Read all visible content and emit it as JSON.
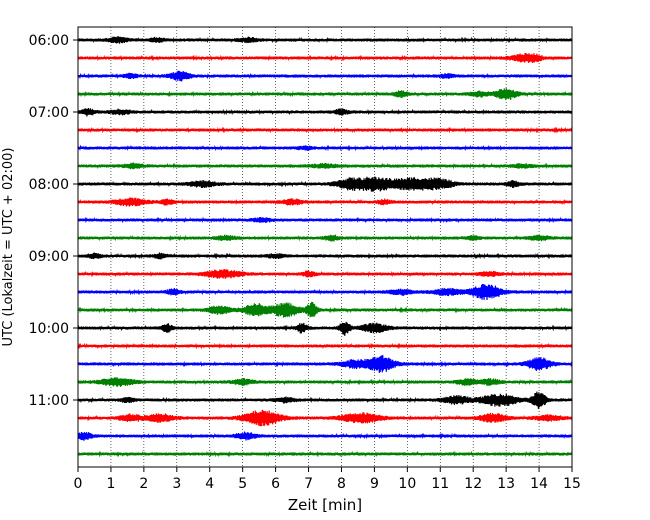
{
  "chart_data": {
    "type": "line",
    "title": "",
    "xlabel": "Zeit  [min]",
    "ylabel": "UTC (Lokalzeit = UTC + 02:00)",
    "xlim": [
      0,
      15
    ],
    "x_ticks": [
      "0",
      "1",
      "2",
      "3",
      "4",
      "5",
      "6",
      "7",
      "8",
      "9",
      "10",
      "11",
      "12",
      "13",
      "14",
      "15"
    ],
    "y_ticks": [
      "06:00",
      "07:00",
      "08:00",
      "09:00",
      "10:00",
      "11:00"
    ],
    "grid": "vertical dotted",
    "color_cycle": [
      "#000000",
      "#ff0000",
      "#0000ff",
      "#008000"
    ],
    "row_minutes": 15,
    "rows": [
      {
        "time": "06:00",
        "bursts": [
          {
            "t": 1.2,
            "a": 2.5,
            "w": 0.3
          },
          {
            "t": 2.4,
            "a": 2,
            "w": 0.2
          },
          {
            "t": 5.2,
            "a": 1.8,
            "w": 0.3
          }
        ]
      },
      {
        "time": "06:15",
        "bursts": [
          {
            "t": 13.5,
            "a": 3.5,
            "w": 0.35
          },
          {
            "t": 13.9,
            "a": 2.5,
            "w": 0.2
          }
        ]
      },
      {
        "time": "06:30",
        "bursts": [
          {
            "t": 1.6,
            "a": 1.8,
            "w": 0.2
          },
          {
            "t": 3.1,
            "a": 4,
            "w": 0.3
          },
          {
            "t": 11.2,
            "a": 1.6,
            "w": 0.2
          }
        ]
      },
      {
        "time": "06:45",
        "bursts": [
          {
            "t": 9.8,
            "a": 2.5,
            "w": 0.2
          },
          {
            "t": 12.2,
            "a": 2.2,
            "w": 0.3
          },
          {
            "t": 13.0,
            "a": 5.5,
            "w": 0.3
          }
        ]
      },
      {
        "time": "07:00",
        "bursts": [
          {
            "t": 0.3,
            "a": 3,
            "w": 0.2
          },
          {
            "t": 1.3,
            "a": 2,
            "w": 0.3
          },
          {
            "t": 8.0,
            "a": 2.5,
            "w": 0.2
          }
        ]
      },
      {
        "time": "07:15",
        "bursts": []
      },
      {
        "time": "07:30",
        "bursts": [
          {
            "t": 6.9,
            "a": 1.5,
            "w": 0.2
          }
        ]
      },
      {
        "time": "07:45",
        "bursts": [
          {
            "t": 1.7,
            "a": 2,
            "w": 0.3
          },
          {
            "t": 7.5,
            "a": 1.5,
            "w": 0.4
          },
          {
            "t": 13.5,
            "a": 1.5,
            "w": 0.3
          }
        ]
      },
      {
        "time": "08:00",
        "bursts": [
          {
            "t": 3.8,
            "a": 2.5,
            "w": 0.4
          },
          {
            "t": 8.2,
            "a": 4,
            "w": 0.4
          },
          {
            "t": 9.0,
            "a": 6,
            "w": 0.6
          },
          {
            "t": 10.2,
            "a": 5.5,
            "w": 0.6
          },
          {
            "t": 11.0,
            "a": 4,
            "w": 0.4
          },
          {
            "t": 13.2,
            "a": 2.5,
            "w": 0.2
          }
        ]
      },
      {
        "time": "08:15",
        "bursts": [
          {
            "t": 1.6,
            "a": 3.5,
            "w": 0.45
          },
          {
            "t": 2.7,
            "a": 2.5,
            "w": 0.2
          },
          {
            "t": 6.5,
            "a": 2.5,
            "w": 0.3
          },
          {
            "t": 9.3,
            "a": 2,
            "w": 0.2
          }
        ]
      },
      {
        "time": "08:30",
        "bursts": [
          {
            "t": 5.6,
            "a": 1.5,
            "w": 0.3
          }
        ]
      },
      {
        "time": "08:45",
        "bursts": [
          {
            "t": 4.5,
            "a": 1.8,
            "w": 0.3
          },
          {
            "t": 7.7,
            "a": 2.5,
            "w": 0.2
          },
          {
            "t": 12.0,
            "a": 1.5,
            "w": 0.2
          },
          {
            "t": 14.0,
            "a": 2,
            "w": 0.3
          }
        ]
      },
      {
        "time": "09:00",
        "bursts": [
          {
            "t": 0.5,
            "a": 2,
            "w": 0.2
          },
          {
            "t": 2.5,
            "a": 2,
            "w": 0.2
          },
          {
            "t": 6.0,
            "a": 1.5,
            "w": 0.3
          }
        ]
      },
      {
        "time": "09:15",
        "bursts": [
          {
            "t": 4.4,
            "a": 3.5,
            "w": 0.55
          },
          {
            "t": 7.0,
            "a": 2.2,
            "w": 0.2
          },
          {
            "t": 12.5,
            "a": 1.8,
            "w": 0.3
          }
        ]
      },
      {
        "time": "09:30",
        "bursts": [
          {
            "t": 2.9,
            "a": 2.5,
            "w": 0.2
          },
          {
            "t": 9.8,
            "a": 2.5,
            "w": 0.35
          },
          {
            "t": 11.2,
            "a": 3,
            "w": 0.4
          },
          {
            "t": 12.4,
            "a": 7,
            "w": 0.45
          }
        ]
      },
      {
        "time": "09:45",
        "bursts": [
          {
            "t": 4.3,
            "a": 3.5,
            "w": 0.35
          },
          {
            "t": 5.4,
            "a": 6,
            "w": 0.35
          },
          {
            "t": 6.3,
            "a": 6.5,
            "w": 0.4
          },
          {
            "t": 7.1,
            "a": 7.5,
            "w": 0.15
          }
        ]
      },
      {
        "time": "10:00",
        "bursts": [
          {
            "t": 2.7,
            "a": 4,
            "w": 0.15
          },
          {
            "t": 6.8,
            "a": 4.5,
            "w": 0.15
          },
          {
            "t": 8.1,
            "a": 6.5,
            "w": 0.15
          },
          {
            "t": 9.0,
            "a": 4,
            "w": 0.4
          }
        ]
      },
      {
        "time": "10:15",
        "bursts": []
      },
      {
        "time": "10:30",
        "bursts": [
          {
            "t": 8.4,
            "a": 3.5,
            "w": 0.4
          },
          {
            "t": 9.2,
            "a": 7.5,
            "w": 0.4
          },
          {
            "t": 14.0,
            "a": 6,
            "w": 0.35
          }
        ]
      },
      {
        "time": "10:45",
        "bursts": [
          {
            "t": 1.2,
            "a": 3.5,
            "w": 0.5
          },
          {
            "t": 5.0,
            "a": 2.5,
            "w": 0.3
          },
          {
            "t": 11.8,
            "a": 2.5,
            "w": 0.3
          },
          {
            "t": 12.5,
            "a": 2.5,
            "w": 0.3
          }
        ]
      },
      {
        "time": "11:00",
        "bursts": [
          {
            "t": 1.5,
            "a": 2,
            "w": 0.2
          },
          {
            "t": 6.3,
            "a": 2,
            "w": 0.3
          },
          {
            "t": 11.5,
            "a": 3.5,
            "w": 0.4
          },
          {
            "t": 12.8,
            "a": 5.5,
            "w": 0.55
          },
          {
            "t": 14.0,
            "a": 8,
            "w": 0.2
          }
        ]
      },
      {
        "time": "11:15",
        "bursts": [
          {
            "t": 1.6,
            "a": 3,
            "w": 0.35
          },
          {
            "t": 2.5,
            "a": 3.5,
            "w": 0.4
          },
          {
            "t": 5.6,
            "a": 7,
            "w": 0.55
          },
          {
            "t": 8.6,
            "a": 4.5,
            "w": 0.6
          },
          {
            "t": 12.6,
            "a": 4,
            "w": 0.4
          },
          {
            "t": 14.3,
            "a": 2.5,
            "w": 0.4
          }
        ]
      },
      {
        "time": "11:30",
        "bursts": [
          {
            "t": 0.2,
            "a": 3.5,
            "w": 0.2
          },
          {
            "t": 5.1,
            "a": 3,
            "w": 0.3
          }
        ]
      },
      {
        "time": "11:45",
        "bursts": []
      }
    ]
  }
}
